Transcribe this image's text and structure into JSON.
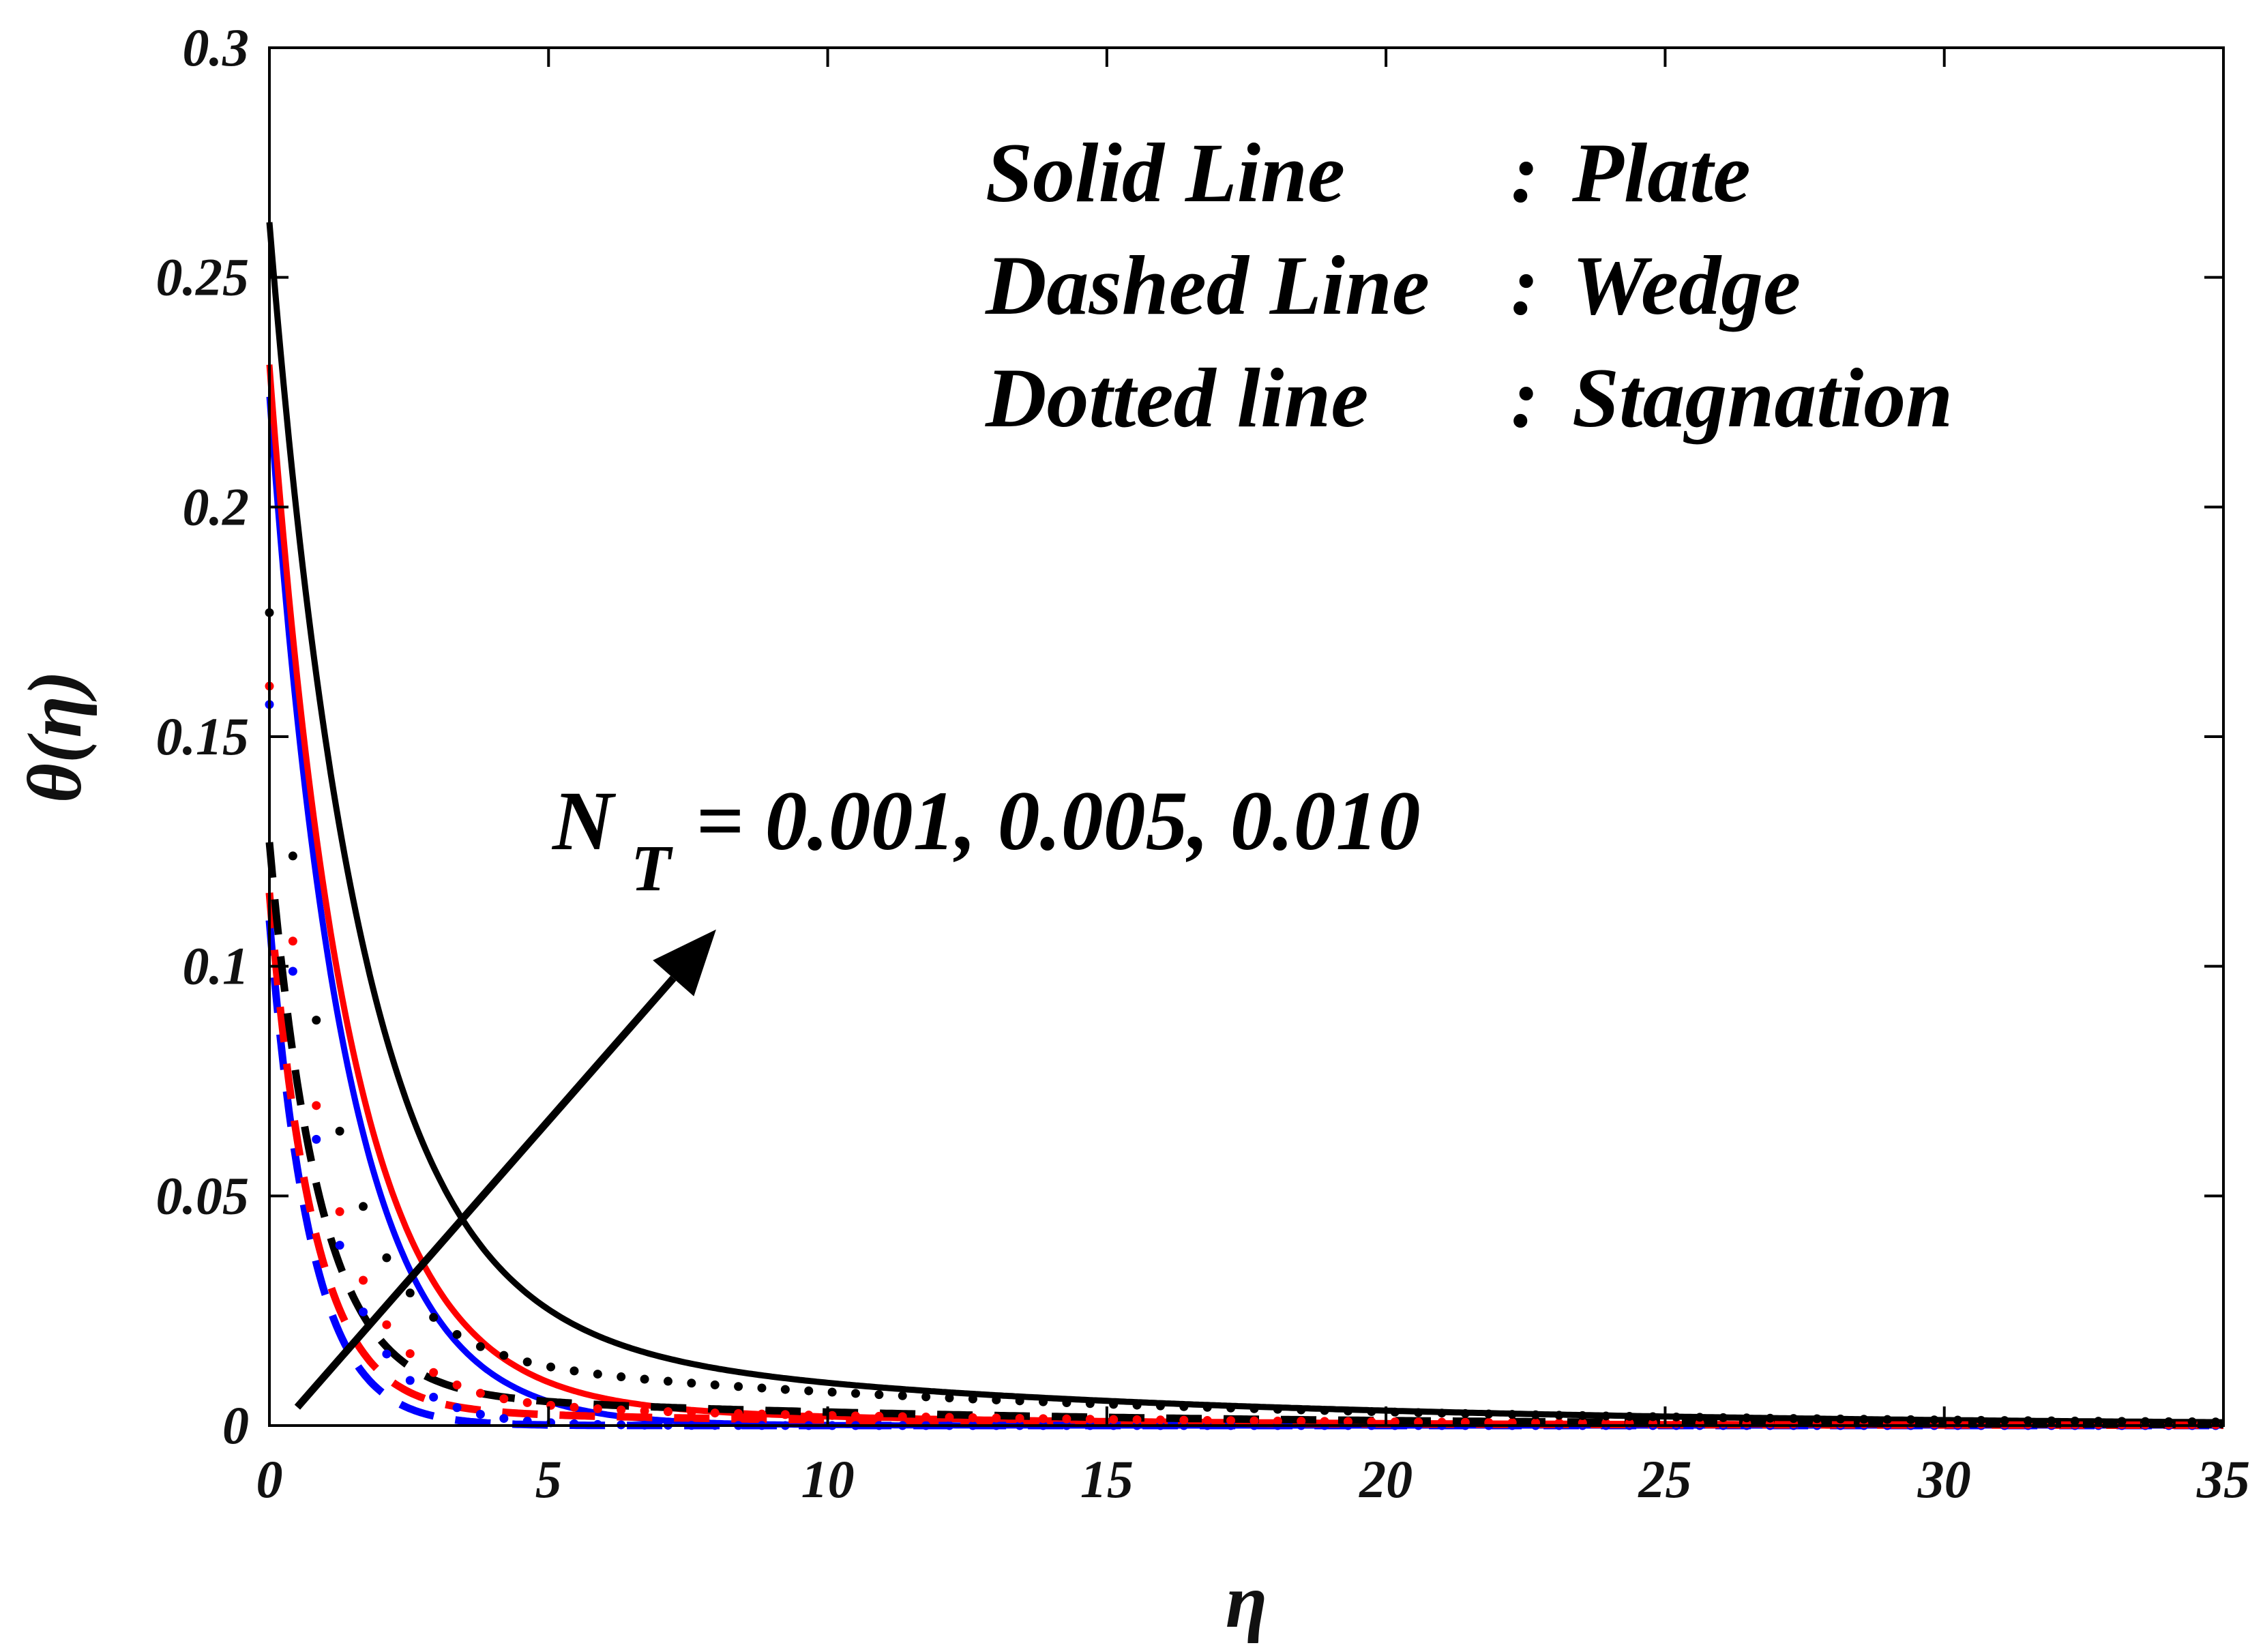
{
  "chart_data": {
    "type": "line",
    "title": "",
    "xlabel": "η",
    "ylabel": "θ(η)",
    "xlim": [
      0,
      35
    ],
    "ylim": [
      0,
      0.3
    ],
    "xticks": [
      0,
      5,
      10,
      15,
      20,
      25,
      30,
      35
    ],
    "yticks": [
      0,
      0.05,
      0.1,
      0.15,
      0.2,
      0.25,
      0.3
    ],
    "xtick_labels": [
      "0",
      "5",
      "10",
      "15",
      "20",
      "25",
      "30",
      "35"
    ],
    "ytick_labels": [
      "0",
      "0.05",
      "0.1",
      "0.15",
      "0.2",
      "0.25",
      "0.3"
    ],
    "grid": false,
    "legend_lines": [
      {
        "key": "Solid Line",
        "sep": ":",
        "value": "Plate"
      },
      {
        "key": "Dashed Line",
        "sep": ":",
        "value": "Wedge"
      },
      {
        "key": "Dotted line",
        "sep": ":",
        "value": "Stagnation"
      }
    ],
    "annotation": {
      "main": "N",
      "subscript": "T",
      "rest": "= 0.001, 0.005, 0.010",
      "arrow": {
        "from": [
          0.5,
          0.004
        ],
        "to": [
          8,
          0.108
        ]
      }
    },
    "series": [
      {
        "name": "Plate, N_T = 0.001",
        "style": "solid",
        "color": "#0000ff",
        "y0": 0.224,
        "decay": 0.75,
        "tail_amp": 0.0,
        "tail_decay": 0.1
      },
      {
        "name": "Plate, N_T = 0.005",
        "style": "solid",
        "color": "#ff0000",
        "y0": 0.231,
        "decay": 0.72,
        "tail_amp": 0.006,
        "tail_decay": 0.12
      },
      {
        "name": "Plate, N_T = 0.010",
        "style": "solid",
        "color": "#000000",
        "y0": 0.262,
        "decay": 0.62,
        "tail_amp": 0.024,
        "tail_decay": 0.1
      },
      {
        "name": "Wedge, N_T = 0.001",
        "style": "dashed",
        "color": "#0000ff",
        "y0": 0.11,
        "decay": 1.35,
        "tail_amp": 0.0,
        "tail_decay": 0.1
      },
      {
        "name": "Wedge, N_T = 0.005",
        "style": "dashed",
        "color": "#ff0000",
        "y0": 0.116,
        "decay": 1.3,
        "tail_amp": 0.004,
        "tail_decay": 0.12
      },
      {
        "name": "Wedge, N_T = 0.010",
        "style": "dashed",
        "color": "#000000",
        "y0": 0.127,
        "decay": 1.15,
        "tail_amp": 0.008,
        "tail_decay": 0.1
      },
      {
        "name": "Stagnation, N_T = 0.001",
        "style": "dotted",
        "color": "#0000ff",
        "y0": 0.157,
        "decay": 1.1,
        "tail_amp": 0.0,
        "tail_decay": 0.1
      },
      {
        "name": "Stagnation, N_T = 0.005",
        "style": "dotted",
        "color": "#ff0000",
        "y0": 0.161,
        "decay": 1.05,
        "tail_amp": 0.006,
        "tail_decay": 0.1
      },
      {
        "name": "Stagnation, N_T = 0.010",
        "style": "dotted",
        "color": "#000000",
        "y0": 0.177,
        "decay": 0.95,
        "tail_amp": 0.018,
        "tail_decay": 0.09
      }
    ]
  }
}
